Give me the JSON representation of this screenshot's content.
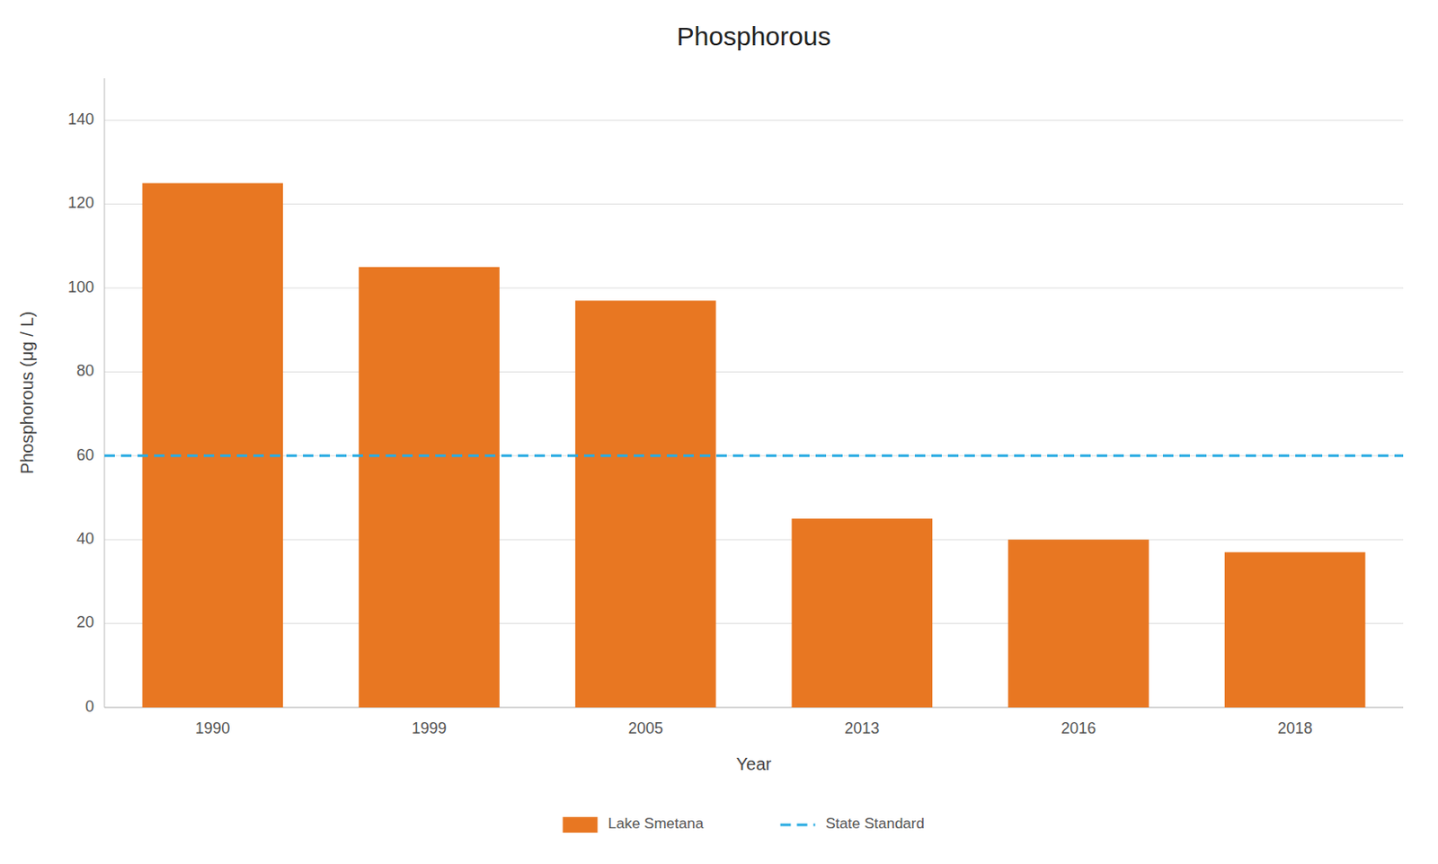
{
  "chart_data": {
    "type": "bar",
    "title": "Phosphorous",
    "xlabel": "Year",
    "ylabel": "Phosphorous (μg / L)",
    "categories": [
      "1990",
      "1999",
      "2005",
      "2013",
      "2016",
      "2018"
    ],
    "series": [
      {
        "name": "Lake Smetana",
        "color": "#E87722",
        "values": [
          125,
          105,
          97,
          45,
          40,
          37
        ]
      }
    ],
    "reference_lines": [
      {
        "name": "State Standard",
        "value": 60,
        "color": "#29ABE2",
        "line_style": "dashed"
      }
    ],
    "ylim": [
      0,
      150
    ],
    "yticks": [
      0,
      20,
      40,
      60,
      80,
      100,
      120,
      140
    ],
    "grid": true,
    "legend": "bottom"
  }
}
